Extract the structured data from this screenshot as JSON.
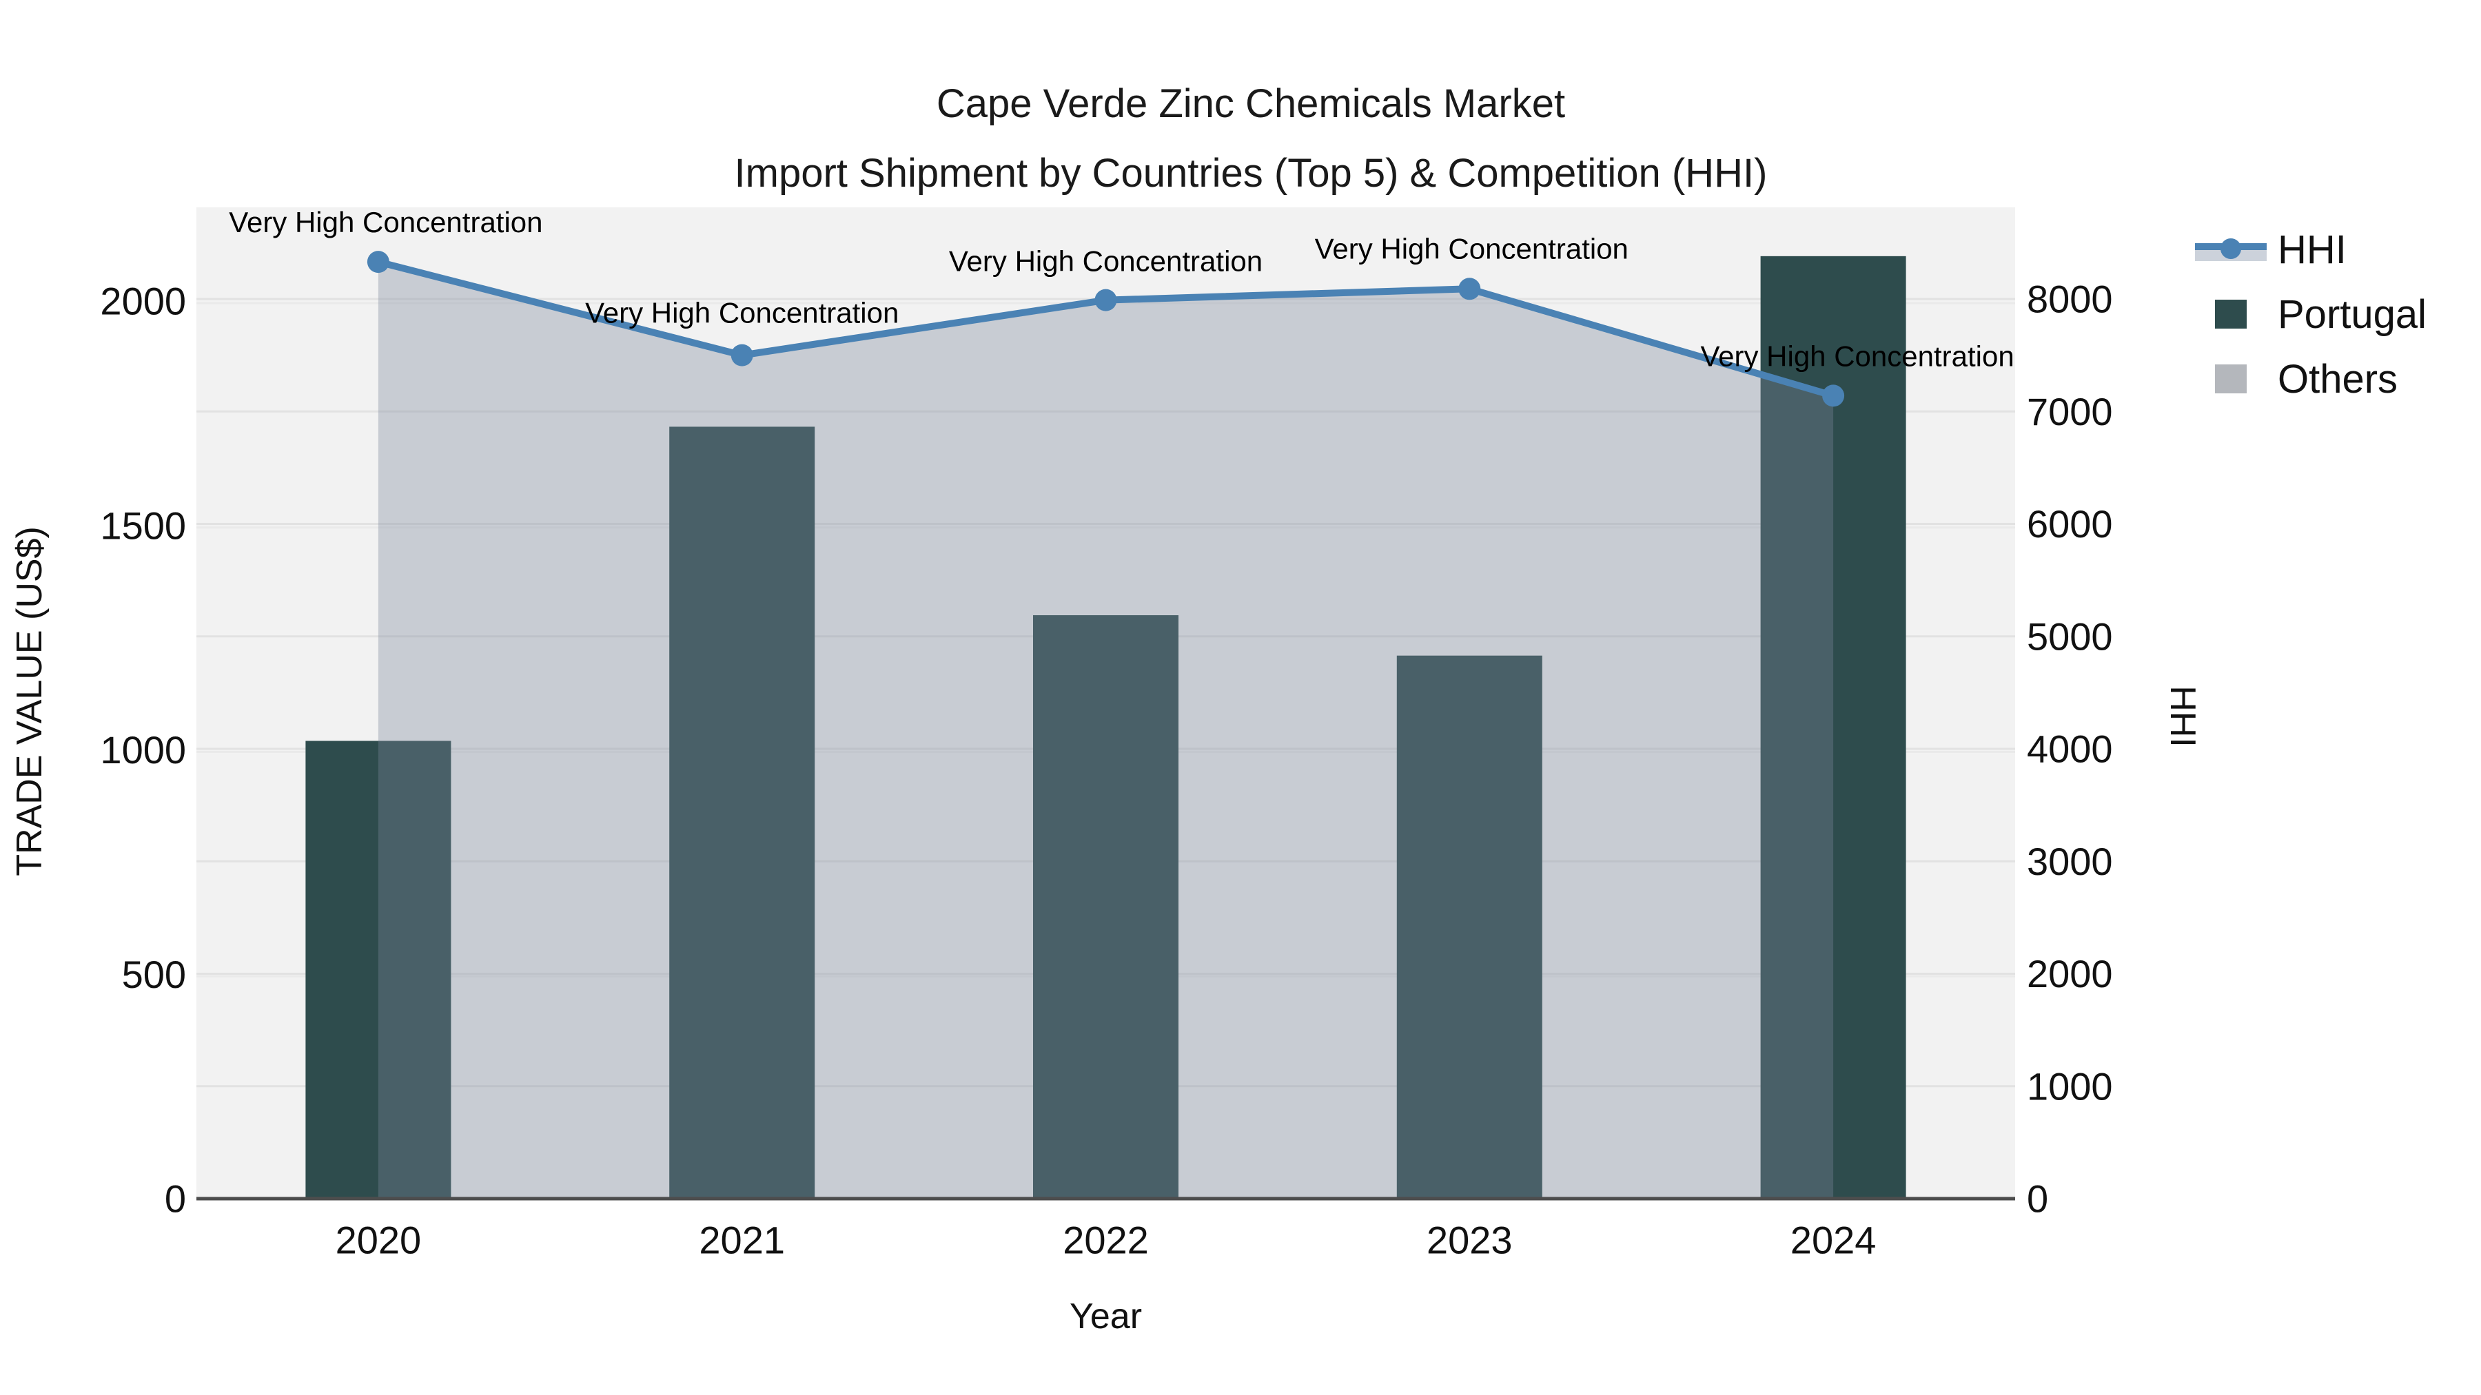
{
  "title": {
    "line1": "Cape Verde Zinc Chemicals Market",
    "line2": "Import Shipment by Countries (Top 5) & Competition (HHI)"
  },
  "legend": {
    "items": [
      "HHI",
      "Portugal",
      "Others"
    ]
  },
  "chart_data": {
    "type": "combo",
    "x": [
      "2020",
      "2021",
      "2022",
      "2023",
      "2024"
    ],
    "xlabel": "Year",
    "left_axis": {
      "label": "TRADE VALUE (US$)",
      "ticks": [
        0,
        500,
        1000,
        1500,
        2000
      ],
      "range": [
        0,
        2000
      ]
    },
    "right_axis": {
      "label": "HHI",
      "ticks": [
        0,
        1000,
        2000,
        3000,
        4000,
        5000,
        6000,
        7000,
        8000
      ],
      "range": [
        0,
        8000
      ]
    },
    "series": [
      {
        "name": "Portugal",
        "type": "bar",
        "axis": "left",
        "values": [
          1020,
          1720,
          1300,
          1210,
          2100
        ],
        "color": "#2e4c4d"
      },
      {
        "name": "Others",
        "type": "area",
        "axis": "left",
        "values": [
          2080,
          1875,
          2000,
          2020,
          1785
        ],
        "color": "#7c879c",
        "opacity": 0.35
      },
      {
        "name": "HHI",
        "type": "line",
        "axis": "right",
        "values": [
          8330,
          7500,
          7990,
          8090,
          7140
        ],
        "color": "#4a82b4"
      }
    ],
    "annotations": [
      "Very High Concentration",
      "Very High Concentration",
      "Very High Concentration",
      "Very High Concentration",
      "Very High Concentration"
    ],
    "colors": {
      "plot_background": "#f2f2f2",
      "gridline_left": "#eaeaea",
      "gridline_right": "#e2e2e2",
      "axis_line": "#4d4d4d",
      "text": "#111111"
    },
    "legend_position": "upper right, outside plot"
  }
}
